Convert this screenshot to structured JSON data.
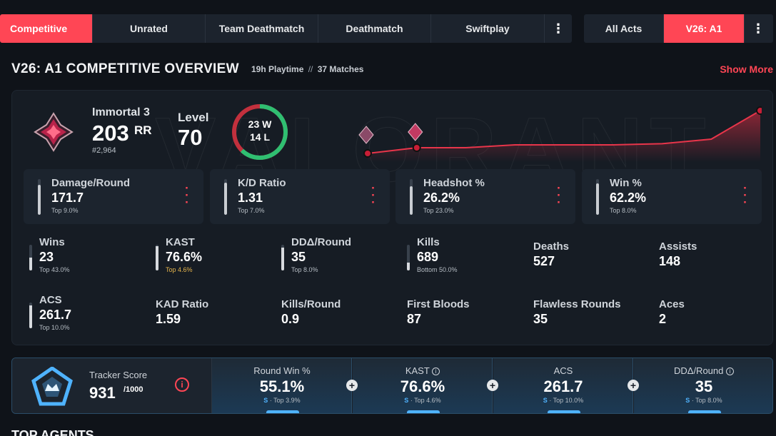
{
  "mode_tabs": [
    {
      "label": "Competitive",
      "active": true
    },
    {
      "label": "Unrated",
      "active": false
    },
    {
      "label": "Team Deathmatch",
      "active": false
    },
    {
      "label": "Deathmatch",
      "active": false
    },
    {
      "label": "Swiftplay",
      "active": false
    }
  ],
  "act_tabs": [
    {
      "label": "All Acts",
      "active": false
    },
    {
      "label": "V26: A1",
      "active": true
    }
  ],
  "overview": {
    "title": "V26: A1 COMPETITIVE OVERVIEW",
    "playtime": "19h Playtime",
    "separator": "//",
    "matches": "37 Matches",
    "show_more": "Show More"
  },
  "rank": {
    "name": "Immortal 3",
    "rr": "203",
    "rr_label": "RR",
    "position": "#2,964",
    "level_label": "Level",
    "level": "70"
  },
  "record": {
    "wins": "23 W",
    "losses": "14 L",
    "win_count": 23,
    "loss_count": 14
  },
  "rank_history_points": [
    0.15,
    0.25,
    0.25,
    0.3,
    0.3,
    0.3,
    0.32,
    0.4,
    0.9
  ],
  "stat_cards": [
    {
      "label": "Damage/Round",
      "value": "171.7",
      "sub": "Top 9.0%",
      "level": 0.85
    },
    {
      "label": "K/D Ratio",
      "value": "1.31",
      "sub": "Top 7.0%",
      "level": 0.9
    },
    {
      "label": "Headshot %",
      "value": "26.2%",
      "sub": "Top 23.0%",
      "level": 0.8
    },
    {
      "label": "Win %",
      "value": "62.2%",
      "sub": "Top 8.0%",
      "level": 0.88
    }
  ],
  "mini_stats": [
    {
      "label": "Wins",
      "value": "23",
      "sub": "Top 43.0%",
      "bar": true,
      "gold": false,
      "level": 0.5
    },
    {
      "label": "KAST",
      "value": "76.6%",
      "sub": "Top 4.6%",
      "bar": true,
      "gold": true,
      "level": 0.95
    },
    {
      "label": "DDΔ/Round",
      "value": "35",
      "sub": "Top 8.0%",
      "bar": true,
      "gold": false,
      "level": 0.9
    },
    {
      "label": "Kills",
      "value": "689",
      "sub": "Bottom 50.0%",
      "bar": true,
      "gold": false,
      "level": 0.3
    },
    {
      "label": "Deaths",
      "value": "527",
      "sub": "",
      "bar": false,
      "gold": false,
      "level": 0
    },
    {
      "label": "Assists",
      "value": "148",
      "sub": "",
      "bar": false,
      "gold": false,
      "level": 0
    },
    {
      "label": "ACS",
      "value": "261.7",
      "sub": "Top 10.0%",
      "bar": true,
      "gold": false,
      "level": 0.9
    },
    {
      "label": "KAD Ratio",
      "value": "1.59",
      "sub": "",
      "bar": false,
      "gold": false,
      "level": 0
    },
    {
      "label": "Kills/Round",
      "value": "0.9",
      "sub": "",
      "bar": false,
      "gold": false,
      "level": 0
    },
    {
      "label": "First Bloods",
      "value": "87",
      "sub": "",
      "bar": false,
      "gold": false,
      "level": 0
    },
    {
      "label": "Flawless Rounds",
      "value": "35",
      "sub": "",
      "bar": false,
      "gold": false,
      "level": 0
    },
    {
      "label": "Aces",
      "value": "2",
      "sub": "",
      "bar": false,
      "gold": false,
      "level": 0
    }
  ],
  "tracker": {
    "label": "Tracker Score",
    "value": "931",
    "max": "/1000",
    "cells": [
      {
        "label": "Round Win %",
        "value": "55.1%",
        "grade": "S",
        "sub": "· Top 3.9%",
        "info": false
      },
      {
        "label": "KAST",
        "value": "76.6%",
        "grade": "S",
        "sub": "· Top 4.6%",
        "info": true
      },
      {
        "label": "ACS",
        "value": "261.7",
        "grade": "S",
        "sub": "· Top 10.0%",
        "info": false
      },
      {
        "label": "DDΔ/Round",
        "value": "35",
        "grade": "S",
        "sub": "· Top 8.0%",
        "info": true
      }
    ]
  },
  "next_section": {
    "title": "TOP AGENTS"
  },
  "colors": {
    "accent": "#ff4655",
    "win": "#2fbf71",
    "tracker": "#4fb3ff"
  }
}
